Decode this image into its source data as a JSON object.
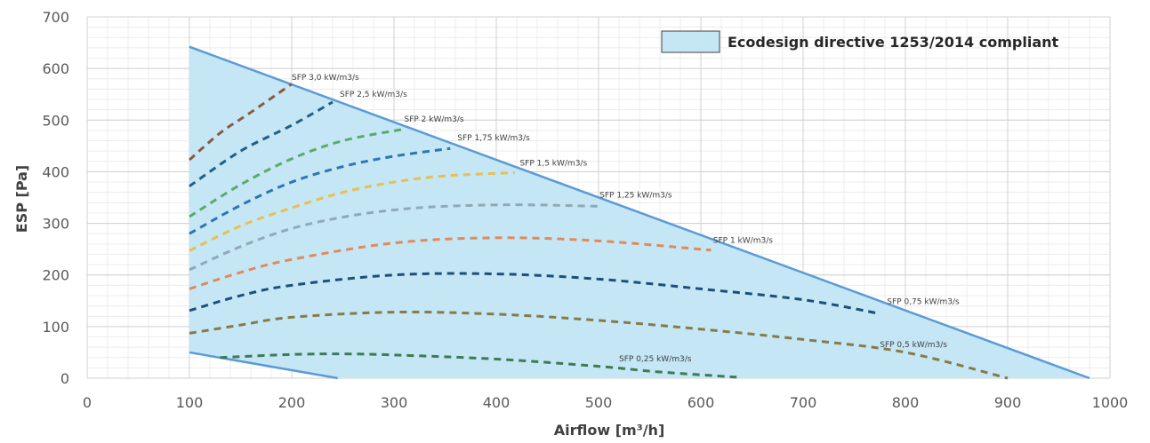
{
  "chart_data": {
    "type": "line",
    "xlabel": "Airflow [m³/h]",
    "ylabel": "ESP [Pa]",
    "xlim": [
      0,
      1000
    ],
    "ylim": [
      0,
      700
    ],
    "x_ticks": [
      "0",
      "100",
      "200",
      "300",
      "400",
      "500",
      "600",
      "700",
      "800",
      "900",
      "1000"
    ],
    "y_ticks": [
      "0",
      "100",
      "200",
      "300",
      "400",
      "500",
      "600",
      "700"
    ],
    "grid": true,
    "legend": {
      "label": "Ecodesign directive 1253/2014 compliant",
      "position": "top-right"
    },
    "compliant_region": {
      "color": "#c5e6f5",
      "boundary_color": "#5b9bd5",
      "upper_boundary": [
        [
          100,
          642
        ],
        [
          980,
          0
        ]
      ],
      "lower_boundary": [
        [
          100,
          50
        ],
        [
          245,
          0
        ]
      ]
    },
    "series": [
      {
        "name": "SFP 3,0 kW/m3/s",
        "color": "#8b5a45",
        "points": [
          [
            100,
            423
          ],
          [
            130,
            475
          ],
          [
            160,
            515
          ],
          [
            200,
            570
          ]
        ]
      },
      {
        "name": "SFP 2,5 kW/m3/s",
        "color": "#1f5f8b",
        "points": [
          [
            100,
            372
          ],
          [
            150,
            440
          ],
          [
            200,
            490
          ],
          [
            240,
            535
          ]
        ]
      },
      {
        "name": "SFP 2 kW/m3/s",
        "color": "#5aaa6e",
        "points": [
          [
            100,
            313
          ],
          [
            150,
            375
          ],
          [
            200,
            425
          ],
          [
            250,
            460
          ],
          [
            308,
            482
          ]
        ]
      },
      {
        "name": "SFP 1,75 kW/m3/s",
        "color": "#2e75b6",
        "points": [
          [
            100,
            280
          ],
          [
            150,
            335
          ],
          [
            200,
            380
          ],
          [
            250,
            410
          ],
          [
            300,
            430
          ],
          [
            355,
            445
          ]
        ]
      },
      {
        "name": "SFP 1,5 kW/m3/s",
        "color": "#e6c050",
        "points": [
          [
            100,
            247
          ],
          [
            150,
            295
          ],
          [
            200,
            330
          ],
          [
            250,
            360
          ],
          [
            300,
            380
          ],
          [
            350,
            392
          ],
          [
            418,
            398
          ]
        ]
      },
      {
        "name": "SFP 1,25 kW/m3/s",
        "color": "#8faab5",
        "points": [
          [
            100,
            210
          ],
          [
            150,
            255
          ],
          [
            200,
            290
          ],
          [
            250,
            312
          ],
          [
            300,
            326
          ],
          [
            350,
            333
          ],
          [
            420,
            336
          ],
          [
            500,
            333
          ]
        ]
      },
      {
        "name": "SFP 1 kW/m3/s",
        "color": "#e08a5c",
        "points": [
          [
            100,
            173
          ],
          [
            150,
            205
          ],
          [
            200,
            230
          ],
          [
            300,
            262
          ],
          [
            400,
            272
          ],
          [
            500,
            266
          ],
          [
            610,
            248
          ]
        ]
      },
      {
        "name": "SFP 0,75 kW/m3/s",
        "color": "#1c4f7a",
        "points": [
          [
            100,
            131
          ],
          [
            150,
            160
          ],
          [
            200,
            180
          ],
          [
            300,
            200
          ],
          [
            400,
            202
          ],
          [
            500,
            192
          ],
          [
            600,
            173
          ],
          [
            700,
            152
          ],
          [
            775,
            125
          ]
        ]
      },
      {
        "name": "SFP 0,5 kW/m3/s",
        "color": "#857b4a",
        "points": [
          [
            100,
            87
          ],
          [
            150,
            103
          ],
          [
            200,
            118
          ],
          [
            300,
            128
          ],
          [
            400,
            124
          ],
          [
            500,
            112
          ],
          [
            600,
            95
          ],
          [
            700,
            75
          ],
          [
            800,
            50
          ],
          [
            900,
            0
          ]
        ]
      },
      {
        "name": "SFP 0,25 kW/m3/s",
        "color": "#3d7a56",
        "points": [
          [
            130,
            40
          ],
          [
            200,
            46
          ],
          [
            250,
            47
          ],
          [
            300,
            45
          ],
          [
            400,
            37
          ],
          [
            500,
            23
          ],
          [
            560,
            12
          ],
          [
            635,
            2
          ]
        ]
      }
    ],
    "annotations": [
      {
        "text": "SFP 3,0 kW/m3/s",
        "x": 200,
        "y": 578
      },
      {
        "text": "SFP 2,5 kW/m3/s",
        "x": 247,
        "y": 545
      },
      {
        "text": "SFP 2 kW/m3/s",
        "x": 310,
        "y": 497
      },
      {
        "text": "SFP 1,75 kW/m3/s",
        "x": 362,
        "y": 461
      },
      {
        "text": "SFP 1,5 kW/m3/s",
        "x": 423,
        "y": 412
      },
      {
        "text": "SFP 1,25 kW/m3/s",
        "x": 501,
        "y": 350
      },
      {
        "text": "SFP 1 kW/m3/s",
        "x": 612,
        "y": 262
      },
      {
        "text": "SFP 0,75 kW/m3/s",
        "x": 782,
        "y": 144
      },
      {
        "text": "SFP 0,5 kW/m3/s",
        "x": 775,
        "y": 60
      },
      {
        "text": "SFP 0,25 kW/m3/s",
        "x": 520,
        "y": 33
      }
    ]
  }
}
